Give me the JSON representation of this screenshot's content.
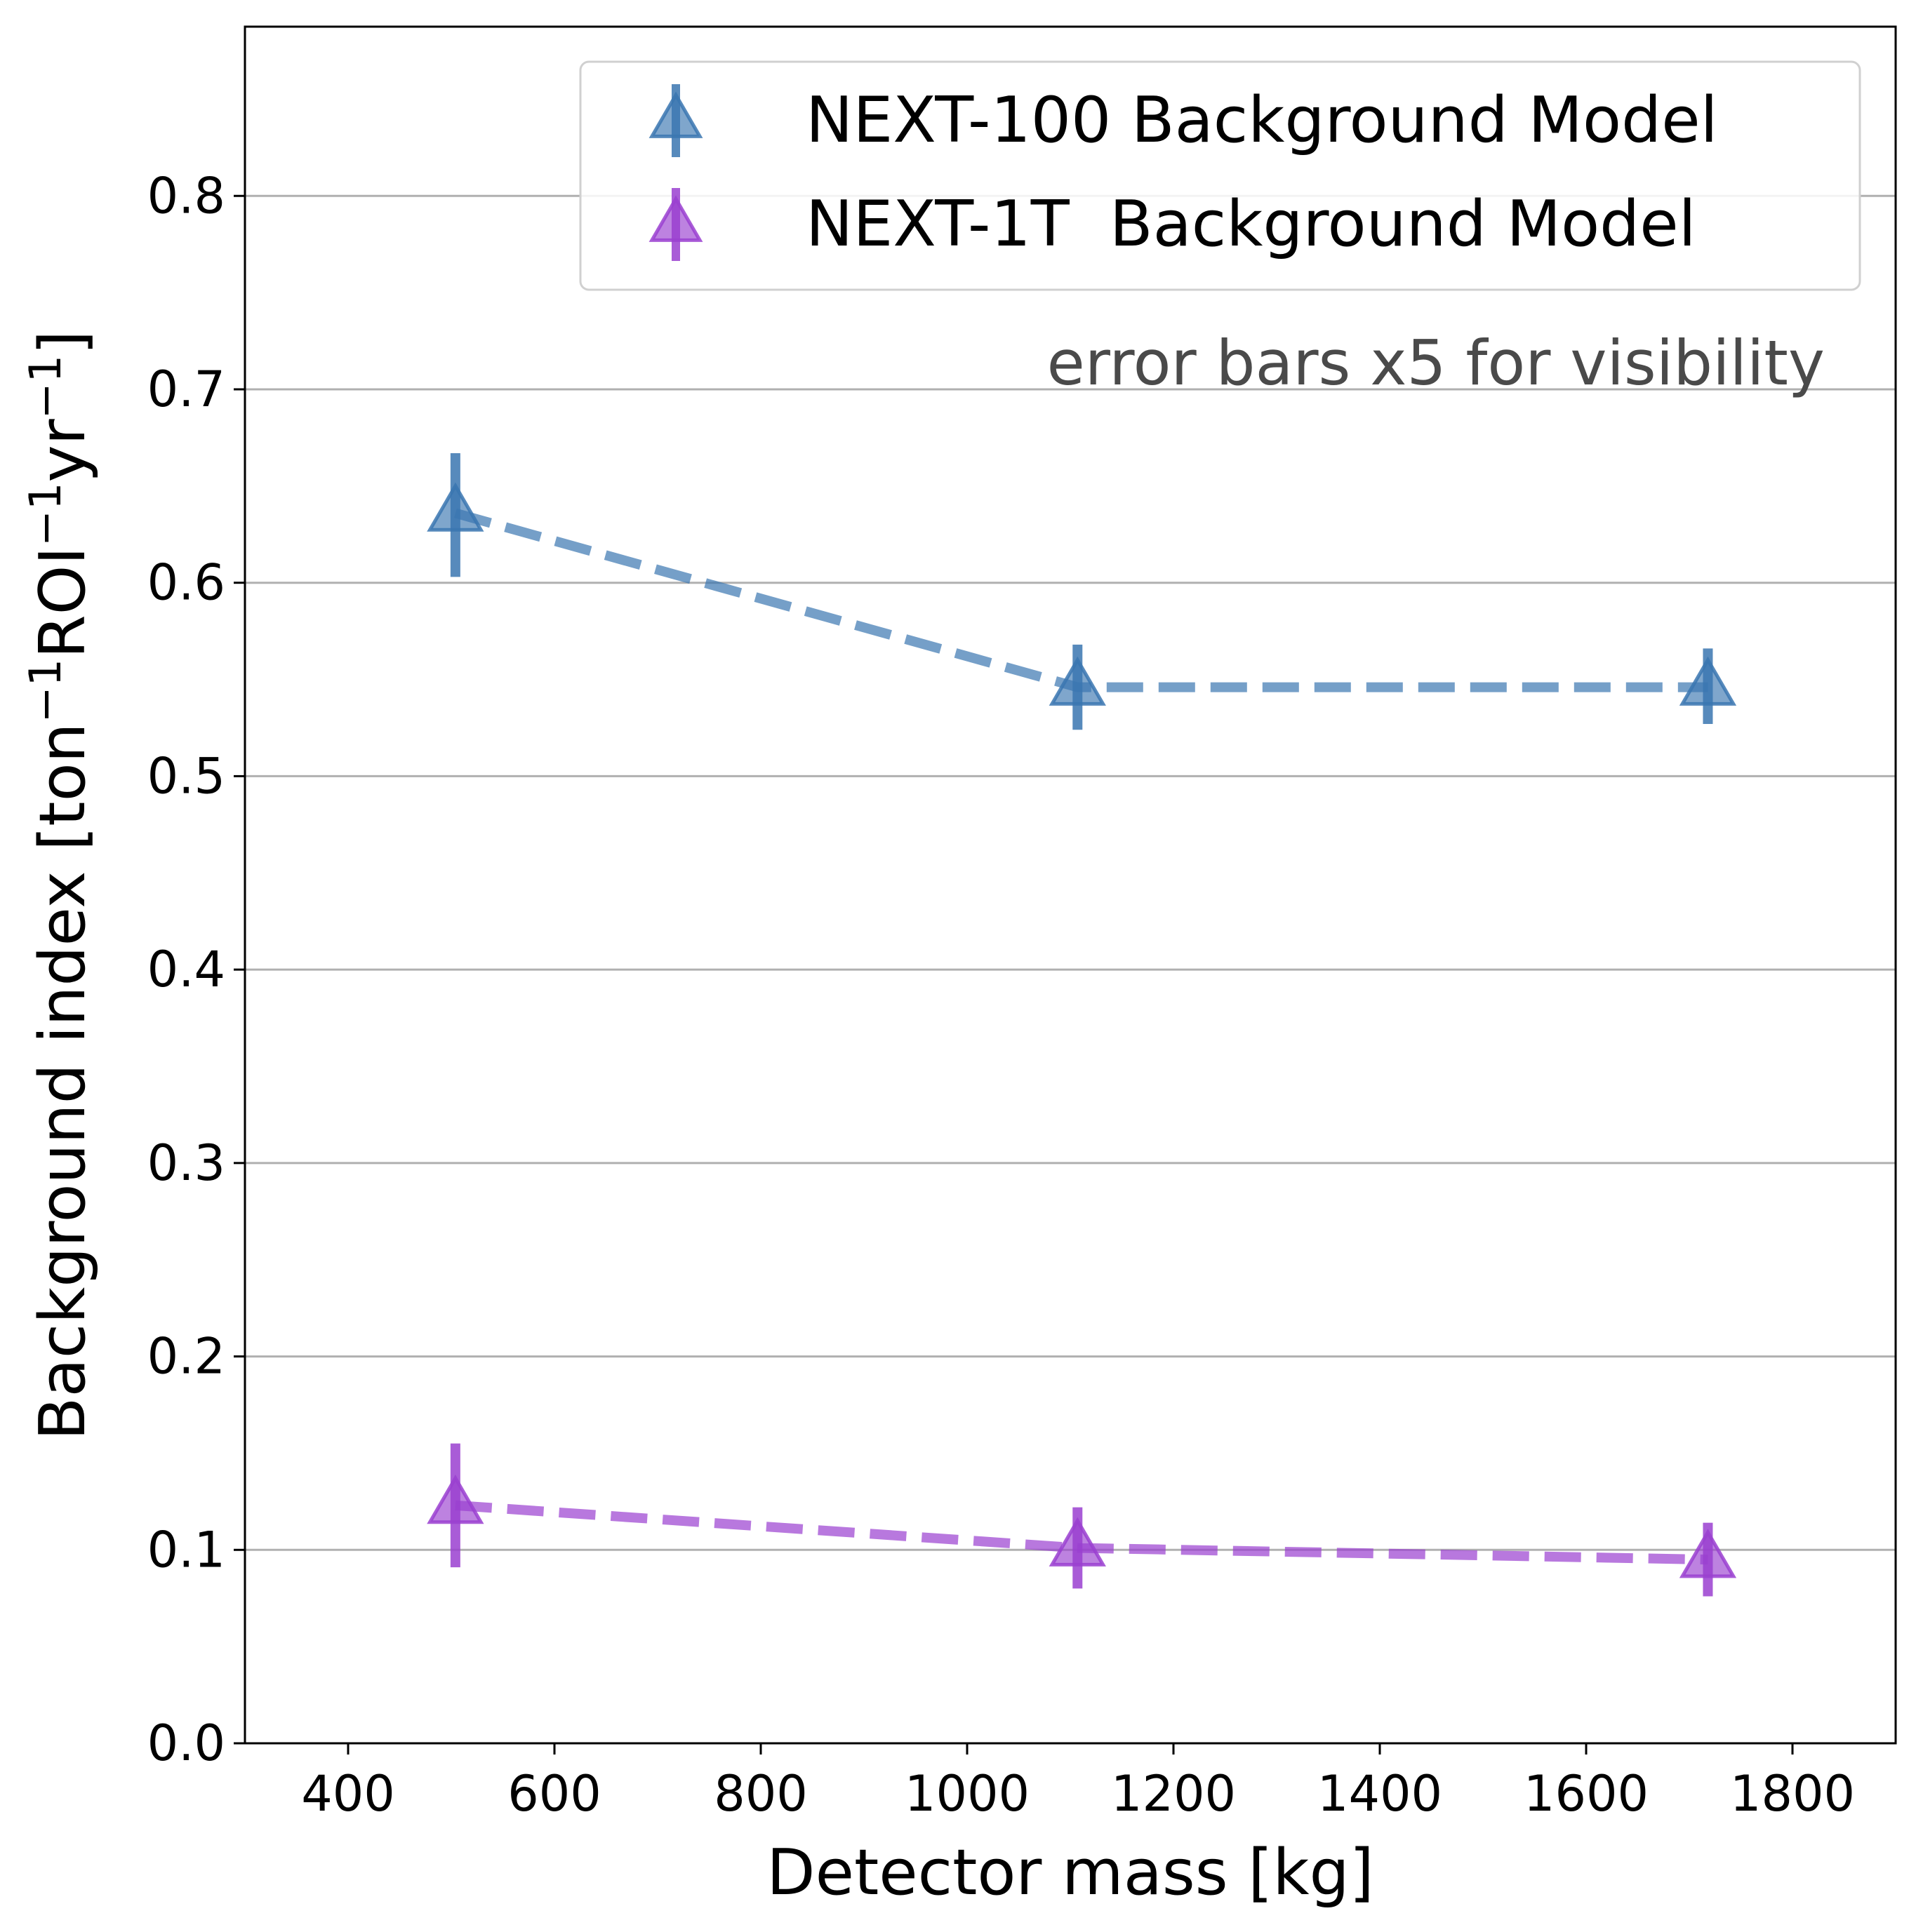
{
  "chart_data": {
    "type": "scatter",
    "xlabel": "Detector mass [kg]",
    "ylabel_main": "Background index [ton",
    "ylabel_sup1": "−1",
    "ylabel_mid1": "ROI",
    "ylabel_sup2": "−1",
    "ylabel_mid2": "yr",
    "ylabel_sup3": "−1",
    "ylabel_end": "]",
    "xlim": [
      300,
      1900
    ],
    "ylim": [
      0.0,
      0.8875
    ],
    "xticks": [
      400,
      600,
      800,
      1000,
      1200,
      1400,
      1600,
      1800
    ],
    "xtick_labels": [
      "400",
      "600",
      "800",
      "1000",
      "1200",
      "1400",
      "1600",
      "1800"
    ],
    "yticks": [
      0.0,
      0.1,
      0.2,
      0.3,
      0.4,
      0.5,
      0.6,
      0.7,
      0.8
    ],
    "ytick_labels": [
      "0.0",
      "0.1",
      "0.2",
      "0.3",
      "0.4",
      "0.5",
      "0.6",
      "0.7",
      "0.8"
    ],
    "grid": "horizontal",
    "legend_position": "top-right",
    "annotation": "error bars x5 for visibility",
    "series": [
      {
        "name": "NEXT-100 Background Model",
        "color": "#3a76b0",
        "marker": "triangle-up",
        "linestyle": "dashed",
        "x": [
          504,
          1107,
          1718
        ],
        "y": [
          0.636,
          0.546,
          0.546
        ],
        "err_low": [
          0.033,
          0.022,
          0.019
        ],
        "err_high": [
          0.031,
          0.022,
          0.02
        ]
      },
      {
        "name": "NEXT-1T  Background Model",
        "color": "#9a3fd0",
        "marker": "triangle-up",
        "linestyle": "dashed",
        "x": [
          504,
          1107,
          1718
        ],
        "y": [
          0.123,
          0.101,
          0.095
        ],
        "err_low": [
          0.032,
          0.021,
          0.019
        ],
        "err_high": [
          0.032,
          0.021,
          0.019
        ]
      }
    ]
  }
}
